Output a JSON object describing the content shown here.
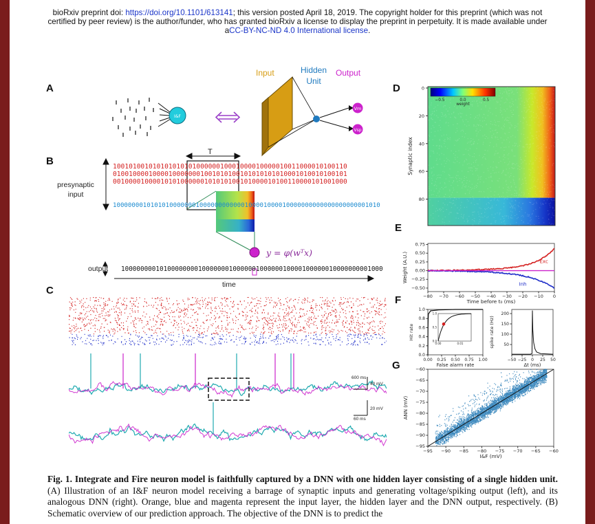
{
  "header": {
    "line1_prefix": "bioRxiv preprint doi: ",
    "doi": "https://doi.org/10.1101/613141",
    "line1_suffix": "; this version posted April 18, 2019. The copyright holder for this preprint (which was not",
    "line2": "certified by peer review) is the author/funder, who has granted bioRxiv a license to display the preprint in perpetuity. It is made available under",
    "line3_prefix": "a",
    "license": "CC-BY-NC-ND 4.0 International license",
    "line3_suffix": "."
  },
  "panels": {
    "A": "A",
    "B": "B",
    "C": "C",
    "D": "D",
    "E": "E",
    "F": "F",
    "G": "G"
  },
  "panel_a": {
    "neuron_label": "I&F",
    "input": "Input",
    "hidden_unit": "Hidden Unit",
    "output": "Output",
    "out_v": "Vm",
    "out_s": "Vsp"
  },
  "panel_b": {
    "window_label": "T",
    "presynaptic_label": "presynaptic input",
    "rows_exc": [
      "10010100101010101010100000010001000010000010011000010100110",
      "01001000010000100000001001010100101010101010001010010100101",
      "00100001000010101000000101010100101000010100110000101001000"
    ],
    "row_inh": "10000000101010100000001000000000000100001000010000000000000000000001010",
    "formula": "y = φ(wᵀx)",
    "output_label": "output",
    "output_bits": "10000000010100000000100000001000000100000010000100000010000000001000",
    "time_label": "time"
  },
  "panel_c": {
    "scale1_v": "40 mV",
    "scale1_t": "600 ms",
    "scale2_v": "20 mV",
    "scale2_t": "60 ms"
  },
  "colors": {
    "exc": "#d42020",
    "inh": "#1c2bc8",
    "magenta": "#cc22cc",
    "teal": "#1faab0",
    "orange": "#d79d14"
  },
  "chart_data": [
    {
      "id": "D",
      "type": "heatmap",
      "ylabel": "Synaptic index",
      "yticks": [
        "0",
        "20",
        "40",
        "60",
        "80"
      ],
      "colorbar": {
        "ticks": [
          "−0.5",
          "0.0",
          "0.5"
        ],
        "label": "weight",
        "range": [
          -0.7,
          0.7
        ]
      }
    },
    {
      "id": "E",
      "type": "line",
      "ylabel": "Weight (A.U.)",
      "xlabel": "Time before t₀ (ms)",
      "xlim": [
        -80,
        0
      ],
      "ylim": [
        -0.6,
        0.78
      ],
      "xticks": [
        "−80",
        "−70",
        "−60",
        "−50",
        "−40",
        "−30",
        "−20",
        "−10",
        "0"
      ],
      "yticks": [
        "0.75",
        "0.50",
        "0.25",
        "0.00",
        "−0.25",
        "−0.50"
      ],
      "series": [
        {
          "name": "Exc",
          "x": [
            -80,
            -60,
            -40,
            -30,
            -20,
            -10,
            -5,
            0
          ],
          "values": [
            0.0,
            0.01,
            0.03,
            0.06,
            0.12,
            0.25,
            0.38,
            0.6
          ]
        },
        {
          "name": "Inh",
          "x": [
            -80,
            -60,
            -40,
            -30,
            -20,
            -10,
            -5,
            0
          ],
          "values": [
            -0.01,
            -0.03,
            -0.07,
            -0.1,
            -0.16,
            -0.28,
            -0.37,
            -0.5
          ]
        }
      ]
    },
    {
      "id": "F1",
      "type": "line",
      "xlabel": "False alarm rate",
      "ylabel": "Hit rate",
      "xlim": [
        0,
        1
      ],
      "ylim": [
        0,
        1
      ],
      "xticks": [
        "0.00",
        "0.25",
        "0.50",
        "0.75",
        "1.00"
      ],
      "yticks": [
        "1.0",
        "0.8",
        "0.6",
        "0.4",
        "0.2",
        "0.0"
      ],
      "series": [
        {
          "name": "ROC",
          "x": [
            0,
            0.002,
            0.005,
            0.01,
            0.05,
            0.2,
            0.5,
            1
          ],
          "values": [
            0,
            0.55,
            0.75,
            0.9,
            0.97,
            0.99,
            1,
            1
          ]
        }
      ],
      "inset": {
        "xticks": [
          "0.00",
          "0.01"
        ],
        "yticks": [
          "1.0",
          "0.5",
          "0.0"
        ],
        "highlight_x": 0.0025,
        "highlight_y": 0.62
      }
    },
    {
      "id": "F2",
      "type": "line",
      "xlabel": "Δt (ms)",
      "ylabel": "spike rate (Hz)",
      "xlim": [
        -50,
        50
      ],
      "ylim": [
        0,
        220
      ],
      "xticks": [
        "−50",
        "−25",
        "0",
        "25",
        "50"
      ],
      "yticks": [
        "200",
        "150",
        "100",
        "50"
      ],
      "series": [
        {
          "name": "rate",
          "x": [
            -50,
            -5,
            -1,
            0,
            1,
            3,
            6,
            10,
            20,
            50
          ],
          "values": [
            3,
            3,
            6,
            215,
            120,
            60,
            30,
            14,
            6,
            3
          ]
        }
      ]
    },
    {
      "id": "G",
      "type": "scatter",
      "xlabel": "I&F (mV)",
      "ylabel": "ANN (mV)",
      "xlim": [
        -95,
        -60
      ],
      "ylim": [
        -95,
        -60
      ],
      "xticks": [
        "−95",
        "−90",
        "−85",
        "−80",
        "−75",
        "−70",
        "−65",
        "−60"
      ],
      "yticks": [
        "−60",
        "−65",
        "−70",
        "−75",
        "−80",
        "−85",
        "−90",
        "−95"
      ]
    }
  ],
  "caption": {
    "title": "Fig. 1. Integrate and Fire neuron model is faithfully captured by a DNN with one hidden layer consisting of a single hidden unit.",
    "p1": " (A) Illustration of an I&F neuron model receiving a barrage of synaptic inputs and generating voltage/spiking output (left), and its analogous DNN (right). Orange, blue and magenta represent the input layer, the hidden layer and the DNN output, respectively. (B) Schematic overview of our prediction approach. The objective of the DNN is to predict the"
  }
}
